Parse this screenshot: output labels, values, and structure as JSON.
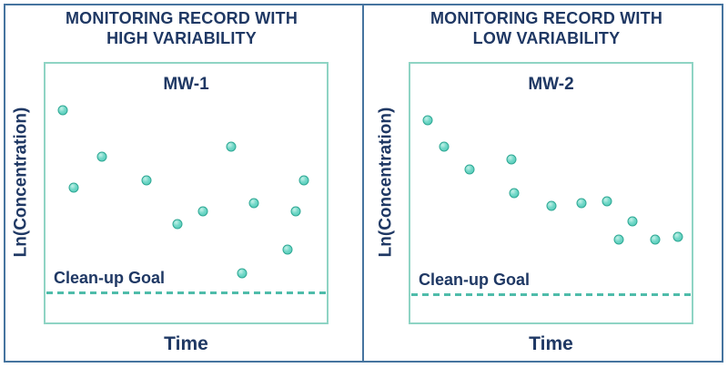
{
  "colors": {
    "frame_border": "#46749f",
    "navy_text": "#1f3864",
    "plot_box_border": "#8fd4c4",
    "goal_line_teal": "#4fbcaa",
    "point_fill": "#5fcfbf",
    "point_edge": "#2fa894",
    "background": "#ffffff"
  },
  "panels": [
    {
      "title_line1": "MONITORING RECORD WITH",
      "title_line2": "HIGH VARIABILITY",
      "well_label": "MW-1",
      "y_axis_label": "Ln(Concentration)",
      "x_axis_label": "Time",
      "goal_label": "Clean-up Goal"
    },
    {
      "title_line1": "MONITORING RECORD WITH",
      "title_line2": "LOW VARIABILITY",
      "well_label": "MW-2",
      "y_axis_label": "Ln(Concentration)",
      "x_axis_label": "Time",
      "goal_label": "Clean-up Goal"
    }
  ],
  "chart_data": [
    {
      "type": "scatter",
      "title": "MW-1",
      "panel_heading": "MONITORING RECORD WITH HIGH VARIABILITY",
      "xlabel": "Time",
      "ylabel": "Ln(Concentration)",
      "x_range": [
        0,
        1
      ],
      "y_range": [
        0,
        1
      ],
      "x_ticks": [],
      "y_ticks": [],
      "grid": false,
      "legend": false,
      "points": [
        {
          "x": 0.06,
          "y": 0.82
        },
        {
          "x": 0.1,
          "y": 0.52
        },
        {
          "x": 0.2,
          "y": 0.64
        },
        {
          "x": 0.36,
          "y": 0.55
        },
        {
          "x": 0.47,
          "y": 0.38
        },
        {
          "x": 0.56,
          "y": 0.43
        },
        {
          "x": 0.66,
          "y": 0.68
        },
        {
          "x": 0.7,
          "y": 0.19
        },
        {
          "x": 0.74,
          "y": 0.46
        },
        {
          "x": 0.86,
          "y": 0.28
        },
        {
          "x": 0.89,
          "y": 0.43
        },
        {
          "x": 0.92,
          "y": 0.55
        }
      ],
      "cleanup_goal_y": 0.115,
      "cleanup_goal_label": "Clean-up Goal",
      "cleanup_goal_style": "dashed"
    },
    {
      "type": "scatter",
      "title": "MW-2",
      "panel_heading": "MONITORING RECORD WITH LOW VARIABILITY",
      "xlabel": "Time",
      "ylabel": "Ln(Concentration)",
      "x_range": [
        0,
        1
      ],
      "y_range": [
        0,
        1
      ],
      "x_ticks": [],
      "y_ticks": [],
      "grid": false,
      "legend": false,
      "points": [
        {
          "x": 0.06,
          "y": 0.78
        },
        {
          "x": 0.12,
          "y": 0.68
        },
        {
          "x": 0.21,
          "y": 0.59
        },
        {
          "x": 0.36,
          "y": 0.63
        },
        {
          "x": 0.37,
          "y": 0.5
        },
        {
          "x": 0.5,
          "y": 0.45
        },
        {
          "x": 0.61,
          "y": 0.46
        },
        {
          "x": 0.7,
          "y": 0.47
        },
        {
          "x": 0.74,
          "y": 0.32
        },
        {
          "x": 0.79,
          "y": 0.39
        },
        {
          "x": 0.87,
          "y": 0.32
        },
        {
          "x": 0.95,
          "y": 0.33
        }
      ],
      "cleanup_goal_y": 0.11,
      "cleanup_goal_label": "Clean-up Goal",
      "cleanup_goal_style": "dashed"
    }
  ]
}
